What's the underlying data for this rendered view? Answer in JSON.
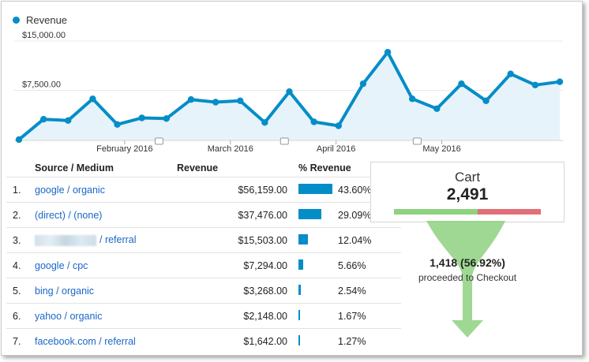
{
  "colors": {
    "series": "#058dc7",
    "fill": "#e6f3fa",
    "grid": "#e8e8e8",
    "link": "#1a67c7",
    "funnel": "#8ed17f",
    "cart_red": "#e06f78"
  },
  "legend": {
    "label": "Revenue"
  },
  "chart_data": {
    "type": "area",
    "series": [
      {
        "name": "Revenue",
        "values": [
          0,
          3100,
          2900,
          6200,
          2300,
          3300,
          3200,
          6100,
          5700,
          5900,
          2600,
          7300,
          2700,
          2100,
          8500,
          13300,
          6200,
          4700,
          8500,
          5900,
          10000,
          8300,
          8800
        ]
      }
    ],
    "y_tick_labels": [
      "$7,500.00",
      "$15,000.00"
    ],
    "y_ticks": [
      7500,
      15000
    ],
    "ylim": [
      0,
      15000
    ],
    "x_tick_labels": [
      "February 2016",
      "March 2016",
      "April 2016",
      "May 2016"
    ],
    "x_tick_positions": [
      4.3,
      8.6,
      12.9,
      17.2
    ],
    "grid": true,
    "legend_placement": "top-left"
  },
  "table": {
    "headers": {
      "source": "Source / Medium",
      "revenue": "Revenue",
      "pct": "% Revenue"
    },
    "rows": [
      {
        "num": "1.",
        "source": "google / organic",
        "revenue": "$56,159.00",
        "pct": "43.60%",
        "share": 0.436
      },
      {
        "num": "2.",
        "source": "(direct) / (none)",
        "revenue": "$37,476.00",
        "pct": "29.09%",
        "share": 0.2909
      },
      {
        "num": "3.",
        "source": "/ referral",
        "revenue": "$15,503.00",
        "pct": "12.04%",
        "share": 0.1204
      },
      {
        "num": "4.",
        "source": "google / cpc",
        "revenue": "$7,294.00",
        "pct": "5.66%",
        "share": 0.0566
      },
      {
        "num": "5.",
        "source": "bing / organic",
        "revenue": "$3,268.00",
        "pct": "2.54%",
        "share": 0.0254
      },
      {
        "num": "6.",
        "source": "yahoo / organic",
        "revenue": "$2,148.00",
        "pct": "1.67%",
        "share": 0.0167
      },
      {
        "num": "7.",
        "source": "facebook.com / referral",
        "revenue": "$1,642.00",
        "pct": "1.27%",
        "share": 0.0127
      }
    ]
  },
  "cart": {
    "title": "Cart",
    "value": "2,491",
    "proceeded_fraction": 0.5692
  },
  "checkout": {
    "value": "1,418 (56.92%)",
    "label": "proceeded to Checkout"
  }
}
